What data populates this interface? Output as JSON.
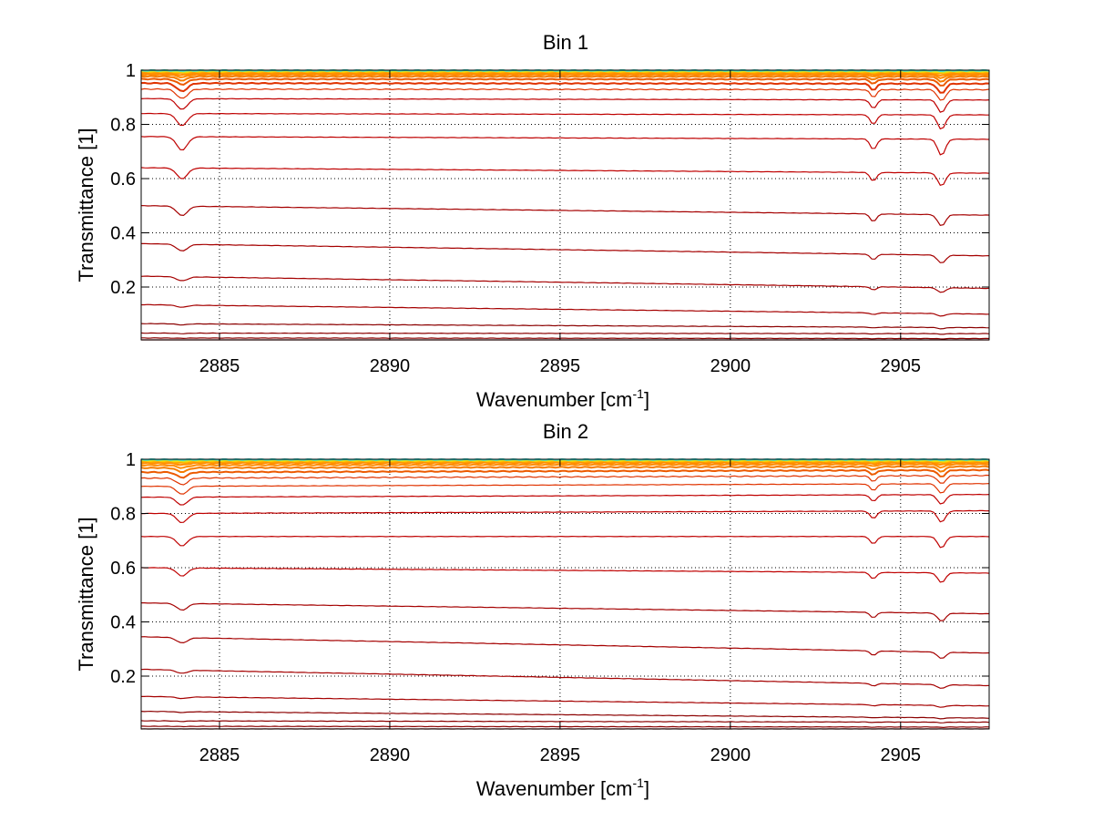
{
  "chart_data": [
    {
      "type": "line",
      "title": "Bin 1",
      "xlabel": "Wavenumber [cm",
      "xlabel_sup": "-1",
      "xlabel_end": "]",
      "ylabel": "Transmittance [1]",
      "xlim": [
        2882.7,
        2907.6
      ],
      "ylim": [
        0.005,
        1.0
      ],
      "xticks": [
        2885,
        2890,
        2895,
        2900,
        2905
      ],
      "xtick_labels": [
        "2885",
        "2890",
        "2895",
        "2900",
        "2905"
      ],
      "yticks": [
        0.2,
        0.4,
        0.6,
        0.8,
        1
      ],
      "ytick_labels": [
        "0.2",
        "0.4",
        "0.6",
        "0.8",
        "1"
      ],
      "grid": true,
      "absorption_lines_x": [
        2883.9,
        2904.2,
        2906.2
      ],
      "colors": [
        "#8b0000",
        "#a50000",
        "#bf0000",
        "#d11a00",
        "#e03300",
        "#ec5a00",
        "#f57c00",
        "#ff8c00",
        "#ffa500",
        "#ffd700",
        "#c8e632",
        "#40e0d0"
      ],
      "series": [
        {
          "values_start": 0.004,
          "values_end": 0.004,
          "dip": 0.0
        },
        {
          "values_start": 0.012,
          "values_end": 0.01,
          "dip": 0.001
        },
        {
          "values_start": 0.03,
          "values_end": 0.028,
          "dip": 0.002
        },
        {
          "values_start": 0.065,
          "values_end": 0.05,
          "dip": 0.004
        },
        {
          "values_start": 0.135,
          "values_end": 0.1,
          "dip": 0.008
        },
        {
          "values_start": 0.24,
          "values_end": 0.195,
          "dip": 0.015
        },
        {
          "values_start": 0.36,
          "values_end": 0.315,
          "dip": 0.025
        },
        {
          "values_start": 0.5,
          "values_end": 0.465,
          "dip": 0.035
        },
        {
          "values_start": 0.64,
          "values_end": 0.62,
          "dip": 0.04
        },
        {
          "values_start": 0.755,
          "values_end": 0.745,
          "dip": 0.05
        },
        {
          "values_start": 0.84,
          "values_end": 0.835,
          "dip": 0.045
        },
        {
          "values_start": 0.895,
          "values_end": 0.89,
          "dip": 0.04
        },
        {
          "values_start": 0.93,
          "values_end": 0.928,
          "dip": 0.035
        },
        {
          "values_start": 0.952,
          "values_end": 0.95,
          "dip": 0.03
        },
        {
          "values_start": 0.967,
          "values_end": 0.966,
          "dip": 0.02
        },
        {
          "values_start": 0.977,
          "values_end": 0.976,
          "dip": 0.015
        },
        {
          "values_start": 0.984,
          "values_end": 0.983,
          "dip": 0.01
        },
        {
          "values_start": 0.989,
          "values_end": 0.988,
          "dip": 0.007
        },
        {
          "values_start": 0.993,
          "values_end": 0.992,
          "dip": 0.004
        },
        {
          "values_start": 0.996,
          "values_end": 0.995,
          "dip": 0.003
        },
        {
          "values_start": 0.998,
          "values_end": 0.997,
          "dip": 0.002
        },
        {
          "values_start": 0.999,
          "values_end": 0.999,
          "dip": 0.001
        }
      ]
    },
    {
      "type": "line",
      "title": "Bin 2",
      "xlabel": "Wavenumber [cm",
      "xlabel_sup": "-1",
      "xlabel_end": "]",
      "ylabel": "Transmittance [1]",
      "xlim": [
        2882.7,
        2907.6
      ],
      "ylim": [
        0.005,
        1.0
      ],
      "xticks": [
        2885,
        2890,
        2895,
        2900,
        2905
      ],
      "xtick_labels": [
        "2885",
        "2890",
        "2895",
        "2900",
        "2905"
      ],
      "yticks": [
        0.2,
        0.4,
        0.6,
        0.8,
        1
      ],
      "ytick_labels": [
        "0.2",
        "0.4",
        "0.6",
        "0.8",
        "1"
      ],
      "grid": true,
      "absorption_lines_x": [
        2883.9,
        2904.2,
        2906.2
      ],
      "colors": [
        "#8b0000",
        "#a50000",
        "#bf0000",
        "#d11a00",
        "#e03300",
        "#ec5a00",
        "#f57c00",
        "#ff8c00",
        "#ffa500",
        "#ffd700",
        "#c8e632",
        "#40e0d0"
      ],
      "series": [
        {
          "values_start": 0.005,
          "values_end": 0.005,
          "dip": 0.0
        },
        {
          "values_start": 0.015,
          "values_end": 0.012,
          "dip": 0.001
        },
        {
          "values_start": 0.035,
          "values_end": 0.03,
          "dip": 0.002
        },
        {
          "values_start": 0.07,
          "values_end": 0.045,
          "dip": 0.003
        },
        {
          "values_start": 0.125,
          "values_end": 0.09,
          "dip": 0.006
        },
        {
          "values_start": 0.225,
          "values_end": 0.165,
          "dip": 0.012
        },
        {
          "values_start": 0.345,
          "values_end": 0.285,
          "dip": 0.02
        },
        {
          "values_start": 0.47,
          "values_end": 0.43,
          "dip": 0.025
        },
        {
          "values_start": 0.6,
          "values_end": 0.58,
          "dip": 0.03
        },
        {
          "values_start": 0.715,
          "values_end": 0.715,
          "dip": 0.035
        },
        {
          "values_start": 0.8,
          "values_end": 0.81,
          "dip": 0.035
        },
        {
          "values_start": 0.86,
          "values_end": 0.87,
          "dip": 0.03
        },
        {
          "values_start": 0.9,
          "values_end": 0.91,
          "dip": 0.03
        },
        {
          "values_start": 0.93,
          "values_end": 0.94,
          "dip": 0.025
        },
        {
          "values_start": 0.952,
          "values_end": 0.96,
          "dip": 0.02
        },
        {
          "values_start": 0.968,
          "values_end": 0.973,
          "dip": 0.015
        },
        {
          "values_start": 0.978,
          "values_end": 0.982,
          "dip": 0.01
        },
        {
          "values_start": 0.986,
          "values_end": 0.988,
          "dip": 0.007
        },
        {
          "values_start": 0.991,
          "values_end": 0.992,
          "dip": 0.005
        },
        {
          "values_start": 0.995,
          "values_end": 0.995,
          "dip": 0.003
        },
        {
          "values_start": 0.997,
          "values_end": 0.997,
          "dip": 0.002
        },
        {
          "values_start": 0.999,
          "values_end": 0.999,
          "dip": 0.001
        }
      ]
    }
  ]
}
